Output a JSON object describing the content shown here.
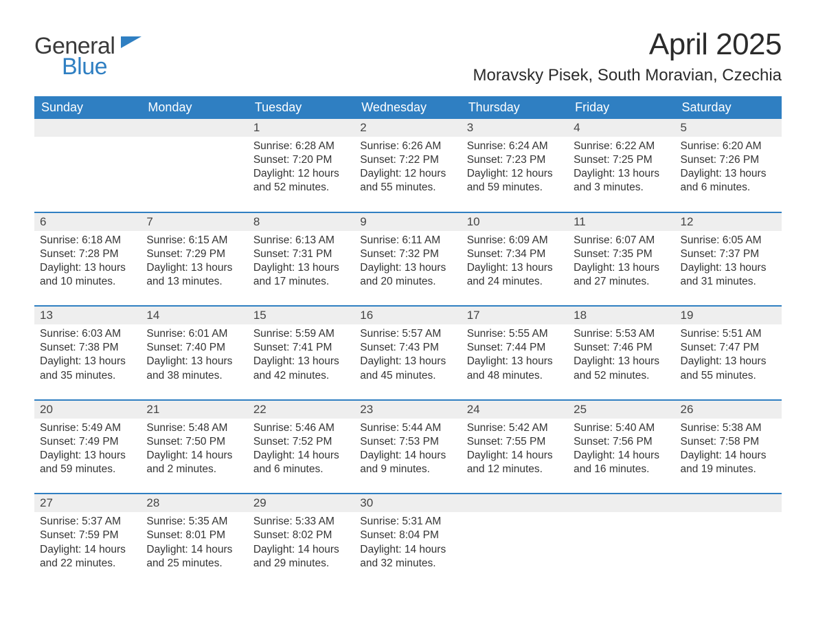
{
  "brand": {
    "word1": "General",
    "word2": "Blue",
    "word1_color": "#3a3a3a",
    "word2_color": "#2f7fc2",
    "mark_color": "#2f7fc2"
  },
  "title": "April 2025",
  "location": "Moravsky Pisek, South Moravian, Czechia",
  "colors": {
    "header_bg": "#2f7fc2",
    "header_text": "#ffffff",
    "daynum_bg": "#eeeeee",
    "week_border": "#2f7fc2",
    "body_text": "#333333",
    "page_bg": "#ffffff"
  },
  "fonts": {
    "title_size_pt": 33,
    "location_size_pt": 18,
    "dow_size_pt": 14,
    "body_size_pt": 12
  },
  "days_of_week": [
    "Sunday",
    "Monday",
    "Tuesday",
    "Wednesday",
    "Thursday",
    "Friday",
    "Saturday"
  ],
  "labels": {
    "sunrise": "Sunrise:",
    "sunset": "Sunset:",
    "daylight": "Daylight:"
  },
  "weeks": [
    [
      {
        "n": "",
        "blank": true
      },
      {
        "n": "",
        "blank": true
      },
      {
        "n": "1",
        "sunrise": "6:28 AM",
        "sunset": "7:20 PM",
        "daylight": "12 hours and 52 minutes."
      },
      {
        "n": "2",
        "sunrise": "6:26 AM",
        "sunset": "7:22 PM",
        "daylight": "12 hours and 55 minutes."
      },
      {
        "n": "3",
        "sunrise": "6:24 AM",
        "sunset": "7:23 PM",
        "daylight": "12 hours and 59 minutes."
      },
      {
        "n": "4",
        "sunrise": "6:22 AM",
        "sunset": "7:25 PM",
        "daylight": "13 hours and 3 minutes."
      },
      {
        "n": "5",
        "sunrise": "6:20 AM",
        "sunset": "7:26 PM",
        "daylight": "13 hours and 6 minutes."
      }
    ],
    [
      {
        "n": "6",
        "sunrise": "6:18 AM",
        "sunset": "7:28 PM",
        "daylight": "13 hours and 10 minutes."
      },
      {
        "n": "7",
        "sunrise": "6:15 AM",
        "sunset": "7:29 PM",
        "daylight": "13 hours and 13 minutes."
      },
      {
        "n": "8",
        "sunrise": "6:13 AM",
        "sunset": "7:31 PM",
        "daylight": "13 hours and 17 minutes."
      },
      {
        "n": "9",
        "sunrise": "6:11 AM",
        "sunset": "7:32 PM",
        "daylight": "13 hours and 20 minutes."
      },
      {
        "n": "10",
        "sunrise": "6:09 AM",
        "sunset": "7:34 PM",
        "daylight": "13 hours and 24 minutes."
      },
      {
        "n": "11",
        "sunrise": "6:07 AM",
        "sunset": "7:35 PM",
        "daylight": "13 hours and 27 minutes."
      },
      {
        "n": "12",
        "sunrise": "6:05 AM",
        "sunset": "7:37 PM",
        "daylight": "13 hours and 31 minutes."
      }
    ],
    [
      {
        "n": "13",
        "sunrise": "6:03 AM",
        "sunset": "7:38 PM",
        "daylight": "13 hours and 35 minutes."
      },
      {
        "n": "14",
        "sunrise": "6:01 AM",
        "sunset": "7:40 PM",
        "daylight": "13 hours and 38 minutes."
      },
      {
        "n": "15",
        "sunrise": "5:59 AM",
        "sunset": "7:41 PM",
        "daylight": "13 hours and 42 minutes."
      },
      {
        "n": "16",
        "sunrise": "5:57 AM",
        "sunset": "7:43 PM",
        "daylight": "13 hours and 45 minutes."
      },
      {
        "n": "17",
        "sunrise": "5:55 AM",
        "sunset": "7:44 PM",
        "daylight": "13 hours and 48 minutes."
      },
      {
        "n": "18",
        "sunrise": "5:53 AM",
        "sunset": "7:46 PM",
        "daylight": "13 hours and 52 minutes."
      },
      {
        "n": "19",
        "sunrise": "5:51 AM",
        "sunset": "7:47 PM",
        "daylight": "13 hours and 55 minutes."
      }
    ],
    [
      {
        "n": "20",
        "sunrise": "5:49 AM",
        "sunset": "7:49 PM",
        "daylight": "13 hours and 59 minutes."
      },
      {
        "n": "21",
        "sunrise": "5:48 AM",
        "sunset": "7:50 PM",
        "daylight": "14 hours and 2 minutes."
      },
      {
        "n": "22",
        "sunrise": "5:46 AM",
        "sunset": "7:52 PM",
        "daylight": "14 hours and 6 minutes."
      },
      {
        "n": "23",
        "sunrise": "5:44 AM",
        "sunset": "7:53 PM",
        "daylight": "14 hours and 9 minutes."
      },
      {
        "n": "24",
        "sunrise": "5:42 AM",
        "sunset": "7:55 PM",
        "daylight": "14 hours and 12 minutes."
      },
      {
        "n": "25",
        "sunrise": "5:40 AM",
        "sunset": "7:56 PM",
        "daylight": "14 hours and 16 minutes."
      },
      {
        "n": "26",
        "sunrise": "5:38 AM",
        "sunset": "7:58 PM",
        "daylight": "14 hours and 19 minutes."
      }
    ],
    [
      {
        "n": "27",
        "sunrise": "5:37 AM",
        "sunset": "7:59 PM",
        "daylight": "14 hours and 22 minutes."
      },
      {
        "n": "28",
        "sunrise": "5:35 AM",
        "sunset": "8:01 PM",
        "daylight": "14 hours and 25 minutes."
      },
      {
        "n": "29",
        "sunrise": "5:33 AM",
        "sunset": "8:02 PM",
        "daylight": "14 hours and 29 minutes."
      },
      {
        "n": "30",
        "sunrise": "5:31 AM",
        "sunset": "8:04 PM",
        "daylight": "14 hours and 32 minutes."
      },
      {
        "n": "",
        "blank": true
      },
      {
        "n": "",
        "blank": true
      },
      {
        "n": "",
        "blank": true
      }
    ]
  ]
}
